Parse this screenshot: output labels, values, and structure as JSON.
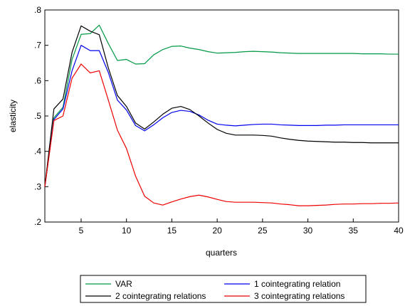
{
  "chart_data": {
    "type": "line",
    "xlabel": "quarters",
    "ylabel": "elasticity",
    "xlim": [
      1,
      40
    ],
    "ylim": [
      0.2,
      0.8
    ],
    "xticks": [
      5,
      10,
      15,
      20,
      25,
      30,
      35,
      40
    ],
    "xtick_labels": [
      "5",
      "10",
      "15",
      "20",
      "25",
      "30",
      "35",
      "40"
    ],
    "yticks": [
      0.2,
      0.3,
      0.4,
      0.5,
      0.6,
      0.7,
      0.8
    ],
    "ytick_labels": [
      ".2",
      ".3",
      ".4",
      ".5",
      ".6",
      ".7",
      ".8"
    ],
    "grid": false,
    "legend_position": "bottom",
    "x": [
      1,
      2,
      3,
      4,
      5,
      6,
      7,
      8,
      9,
      10,
      11,
      12,
      13,
      14,
      15,
      16,
      17,
      18,
      19,
      20,
      21,
      22,
      23,
      24,
      25,
      26,
      27,
      28,
      29,
      30,
      31,
      32,
      33,
      34,
      35,
      36,
      37,
      38,
      39,
      40
    ],
    "series": [
      {
        "name": "VAR",
        "color": "#009944",
        "values": [
          0.3,
          0.495,
          0.525,
          0.66,
          0.731,
          0.733,
          0.757,
          0.705,
          0.657,
          0.66,
          0.647,
          0.648,
          0.673,
          0.688,
          0.697,
          0.698,
          0.692,
          0.688,
          0.682,
          0.678,
          0.679,
          0.68,
          0.682,
          0.683,
          0.682,
          0.681,
          0.679,
          0.678,
          0.677,
          0.677,
          0.677,
          0.677,
          0.677,
          0.677,
          0.677,
          0.676,
          0.676,
          0.676,
          0.675,
          0.675
        ]
      },
      {
        "name": "1 cointegrating relation",
        "color": "#0000ee",
        "values": [
          0.3,
          0.49,
          0.52,
          0.628,
          0.7,
          0.685,
          0.685,
          0.623,
          0.545,
          0.517,
          0.473,
          0.458,
          0.475,
          0.495,
          0.51,
          0.516,
          0.513,
          0.503,
          0.488,
          0.477,
          0.474,
          0.472,
          0.474,
          0.476,
          0.477,
          0.477,
          0.475,
          0.474,
          0.473,
          0.473,
          0.473,
          0.474,
          0.474,
          0.475,
          0.475,
          0.475,
          0.475,
          0.475,
          0.475,
          0.475
        ]
      },
      {
        "name": "2 cointegrating relations",
        "color": "#000000",
        "values": [
          0.3,
          0.52,
          0.548,
          0.68,
          0.755,
          0.74,
          0.73,
          0.636,
          0.558,
          0.527,
          0.48,
          0.463,
          0.483,
          0.505,
          0.522,
          0.527,
          0.518,
          0.5,
          0.48,
          0.462,
          0.451,
          0.446,
          0.446,
          0.446,
          0.445,
          0.443,
          0.438,
          0.434,
          0.431,
          0.429,
          0.428,
          0.427,
          0.426,
          0.426,
          0.425,
          0.425,
          0.424,
          0.424,
          0.424,
          0.424
        ]
      },
      {
        "name": "3 cointegrating relations",
        "color": "#ee0000",
        "values": [
          0.3,
          0.487,
          0.5,
          0.607,
          0.647,
          0.622,
          0.628,
          0.545,
          0.46,
          0.408,
          0.33,
          0.273,
          0.254,
          0.248,
          0.257,
          0.265,
          0.272,
          0.276,
          0.271,
          0.264,
          0.258,
          0.256,
          0.256,
          0.256,
          0.255,
          0.254,
          0.251,
          0.249,
          0.246,
          0.246,
          0.247,
          0.248,
          0.25,
          0.251,
          0.251,
          0.252,
          0.252,
          0.253,
          0.253,
          0.254
        ]
      }
    ]
  }
}
